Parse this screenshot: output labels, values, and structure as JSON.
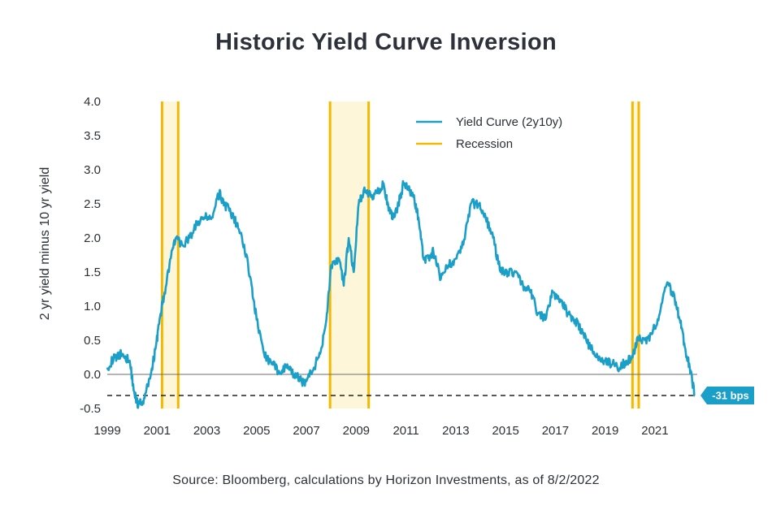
{
  "chart_data": {
    "type": "line",
    "title": "Historic Yield Curve Inversion",
    "ylabel": "2 yr yield minus 10 yr yield",
    "xlabel": "",
    "source": "Source: Bloomberg, calculations by Horizon  Investments, as of 8/2/2022",
    "xlim": [
      1999,
      2022.7
    ],
    "ylim": [
      -0.5,
      4.0
    ],
    "x_ticks": [
      "1999",
      "2001",
      "2003",
      "2005",
      "2007",
      "2009",
      "2011",
      "2013",
      "2015",
      "2017",
      "2019",
      "2021"
    ],
    "y_ticks": [
      "4.0",
      "3.5",
      "3.0",
      "2.5",
      "2.0",
      "1.5",
      "1.0",
      "0.5",
      "0.0",
      "-0.5"
    ],
    "series": [
      {
        "name": "Yield Curve (2y10y)",
        "color": "#1a9fc9",
        "x": [
          1999.0,
          1999.3,
          1999.6,
          1999.9,
          2000.1,
          2000.25,
          2000.5,
          2000.75,
          2000.95,
          2001.1,
          2001.3,
          2001.55,
          2001.75,
          2002.0,
          2002.3,
          2002.6,
          2002.9,
          2003.2,
          2003.5,
          2003.7,
          2003.9,
          2004.2,
          2004.5,
          2004.8,
          2005.0,
          2005.3,
          2005.6,
          2005.9,
          2006.2,
          2006.5,
          2006.8,
          2007.0,
          2007.3,
          2007.55,
          2007.8,
          2008.0,
          2008.3,
          2008.5,
          2008.7,
          2008.9,
          2009.1,
          2009.3,
          2009.6,
          2009.9,
          2010.1,
          2010.3,
          2010.5,
          2010.7,
          2010.9,
          2011.1,
          2011.3,
          2011.5,
          2011.7,
          2011.9,
          2012.1,
          2012.4,
          2012.7,
          2013.0,
          2013.3,
          2013.6,
          2013.9,
          2014.2,
          2014.5,
          2014.8,
          2015.1,
          2015.4,
          2015.7,
          2016.0,
          2016.3,
          2016.6,
          2016.9,
          2017.2,
          2017.5,
          2017.8,
          2018.1,
          2018.4,
          2018.7,
          2019.0,
          2019.3,
          2019.6,
          2019.85,
          2020.1,
          2020.3,
          2020.6,
          2020.9,
          2021.2,
          2021.5,
          2021.8,
          2022.0,
          2022.2,
          2022.4,
          2022.6
        ],
        "values": [
          0.1,
          0.25,
          0.3,
          0.2,
          -0.3,
          -0.45,
          -0.35,
          0.0,
          0.4,
          0.8,
          1.2,
          1.7,
          2.0,
          1.9,
          2.0,
          2.2,
          2.3,
          2.3,
          2.65,
          2.5,
          2.4,
          2.2,
          1.9,
          1.3,
          0.8,
          0.3,
          0.15,
          0.05,
          0.1,
          0.0,
          -0.1,
          -0.1,
          0.1,
          0.3,
          0.8,
          1.6,
          1.7,
          1.3,
          2.0,
          1.5,
          2.5,
          2.7,
          2.6,
          2.7,
          2.8,
          2.4,
          2.3,
          2.5,
          2.8,
          2.7,
          2.6,
          2.3,
          1.7,
          1.7,
          1.8,
          1.4,
          1.6,
          1.7,
          1.9,
          2.5,
          2.5,
          2.3,
          2.0,
          1.5,
          1.5,
          1.5,
          1.3,
          1.2,
          0.9,
          0.8,
          1.2,
          1.1,
          0.9,
          0.8,
          0.6,
          0.4,
          0.25,
          0.2,
          0.15,
          0.1,
          0.2,
          0.25,
          0.55,
          0.5,
          0.6,
          0.9,
          1.35,
          1.1,
          0.8,
          0.4,
          0.1,
          -0.31
        ]
      },
      {
        "name": "Recession",
        "color": "#f5b800",
        "shade_color": "#fdf6d8",
        "periods": [
          [
            2001.2,
            2001.85
          ],
          [
            2007.95,
            2009.5
          ],
          [
            2020.1,
            2020.35
          ]
        ]
      }
    ],
    "reference_line": {
      "y": 0.0,
      "color": "#6b6b6b"
    },
    "dashed_line": {
      "y": -0.31,
      "color": "#222222"
    },
    "callout": {
      "label": "-31 bps",
      "value": -0.31,
      "color": "#1a9fc9"
    },
    "legend_position": "top-right",
    "grid": false
  }
}
